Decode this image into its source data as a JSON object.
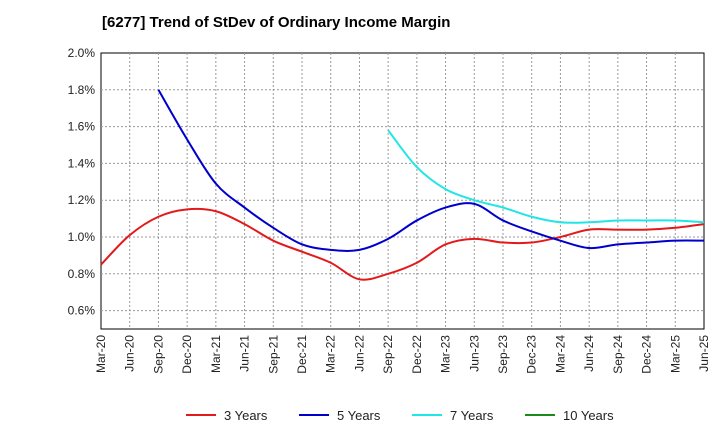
{
  "header": {
    "title": "[6277]  Trend of StDev of Ordinary Income Margin"
  },
  "chart_data": {
    "type": "line",
    "title": "[6277]  Trend of StDev of Ordinary Income Margin",
    "xlabel": "",
    "ylabel": "",
    "x_ticks": [
      "Mar-20",
      "Jun-20",
      "Sep-20",
      "Dec-20",
      "Mar-21",
      "Jun-21",
      "Sep-21",
      "Dec-21",
      "Mar-22",
      "Jun-22",
      "Sep-22",
      "Dec-22",
      "Mar-23",
      "Jun-23",
      "Sep-23",
      "Dec-23",
      "Mar-24",
      "Jun-24",
      "Sep-24",
      "Dec-24",
      "Mar-25",
      "Jun-25"
    ],
    "y_ticks": [
      "0.6%",
      "0.8%",
      "1.0%",
      "1.2%",
      "1.4%",
      "1.6%",
      "1.8%",
      "2.0%"
    ],
    "ylim": [
      0.5,
      2.0
    ],
    "grid": true,
    "legend_position": "bottom",
    "series": [
      {
        "name": "3 Years",
        "color": "#e31a1c",
        "values": [
          0.85,
          1.01,
          1.11,
          1.15,
          1.14,
          1.07,
          0.98,
          0.92,
          0.86,
          0.77,
          0.8,
          0.86,
          0.96,
          0.99,
          0.97,
          0.97,
          1.0,
          1.04,
          1.04,
          1.04,
          1.05,
          1.07
        ]
      },
      {
        "name": "5 Years",
        "color": "#0000cc",
        "values": [
          null,
          null,
          1.8,
          1.53,
          1.29,
          1.16,
          1.05,
          0.96,
          0.93,
          0.93,
          0.99,
          1.09,
          1.16,
          1.18,
          1.09,
          1.03,
          0.98,
          0.94,
          0.96,
          0.97,
          0.98,
          0.98
        ]
      },
      {
        "name": "7 Years",
        "color": "#22e5e5",
        "values": [
          null,
          null,
          null,
          null,
          null,
          null,
          null,
          null,
          null,
          null,
          1.58,
          1.38,
          1.26,
          1.2,
          1.16,
          1.11,
          1.08,
          1.08,
          1.09,
          1.09,
          1.09,
          1.08
        ]
      },
      {
        "name": "10 Years",
        "color": "#1a8a1a",
        "values": [
          null,
          null,
          null,
          null,
          null,
          null,
          null,
          null,
          null,
          null,
          null,
          null,
          null,
          null,
          null,
          null,
          null,
          null,
          null,
          null,
          null,
          null
        ]
      }
    ]
  }
}
